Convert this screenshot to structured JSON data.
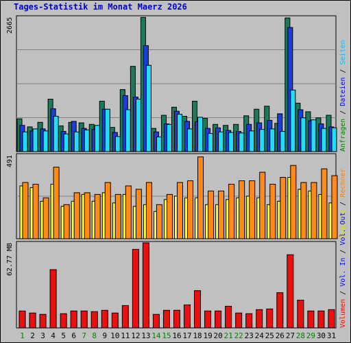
{
  "title": "Tages-Statistik im Monat Maerz 2026",
  "chart_data": [
    {
      "type": "bar",
      "panel": "requests",
      "max_label": "2665",
      "ylim": [
        0,
        2665
      ],
      "x": [
        1,
        2,
        3,
        4,
        5,
        6,
        7,
        8,
        9,
        10,
        11,
        12,
        13,
        14,
        15,
        16,
        17,
        18,
        19,
        20,
        21,
        22,
        23,
        24,
        25,
        26,
        27,
        28,
        29,
        30,
        31
      ],
      "legend": [
        {
          "name": "Anfragen",
          "color": "#008000"
        },
        {
          "name": "Dateien",
          "color": "#0000ff"
        },
        {
          "name": "Seiten",
          "color": "#00c0ff"
        }
      ],
      "series": [
        {
          "name": "Anfragen",
          "color": "#1a7a5a",
          "values": [
            650,
            490,
            580,
            1040,
            510,
            580,
            570,
            540,
            1000,
            480,
            1230,
            1690,
            2660,
            460,
            720,
            880,
            700,
            1000,
            660,
            540,
            520,
            540,
            710,
            840,
            900,
            560,
            2650,
            960,
            790,
            670,
            720
          ]
        },
        {
          "name": "Dateien",
          "color": "#1c3ed8",
          "values": [
            520,
            410,
            450,
            850,
            400,
            600,
            460,
            440,
            840,
            380,
            1110,
            1080,
            2100,
            390,
            550,
            800,
            600,
            590,
            460,
            470,
            420,
            400,
            540,
            570,
            620,
            750,
            2460,
            830,
            610,
            550,
            490
          ]
        },
        {
          "name": "Seiten",
          "color": "#22dcf8",
          "values": [
            390,
            450,
            410,
            700,
            350,
            390,
            430,
            520,
            840,
            300,
            830,
            1040,
            1710,
            290,
            540,
            740,
            450,
            680,
            360,
            390,
            380,
            370,
            410,
            440,
            450,
            400,
            1220,
            670,
            630,
            460,
            470
          ]
        }
      ]
    },
    {
      "type": "bar",
      "panel": "visits",
      "max_label": "491",
      "ylim": [
        0,
        491
      ],
      "x": [
        1,
        2,
        3,
        4,
        5,
        6,
        7,
        8,
        9,
        10,
        11,
        12,
        13,
        14,
        15,
        16,
        17,
        18,
        19,
        20,
        21,
        22,
        23,
        24,
        25,
        26,
        27,
        28,
        29,
        30,
        31
      ],
      "legend": [
        {
          "name": "Besuche",
          "color": "#e0e000"
        },
        {
          "name": "Rechner",
          "color": "#ff8000"
        }
      ],
      "series": [
        {
          "name": "Besuche",
          "color": "#ffff33",
          "values": [
            310,
            300,
            220,
            320,
            190,
            220,
            260,
            220,
            270,
            210,
            260,
            190,
            200,
            160,
            230,
            250,
            240,
            240,
            200,
            200,
            230,
            240,
            250,
            240,
            200,
            220,
            360,
            290,
            280,
            260,
            210
          ]
        },
        {
          "name": "Rechner",
          "color": "#ff8a1a",
          "values": [
            330,
            320,
            240,
            420,
            200,
            270,
            270,
            260,
            330,
            260,
            310,
            290,
            330,
            200,
            260,
            330,
            340,
            480,
            280,
            280,
            320,
            340,
            340,
            390,
            320,
            360,
            430,
            330,
            330,
            410,
            370
          ]
        }
      ]
    },
    {
      "type": "bar",
      "panel": "volume",
      "max_label": "62.77 MB",
      "ylim": [
        0,
        62.77
      ],
      "x": [
        1,
        2,
        3,
        4,
        5,
        6,
        7,
        8,
        9,
        10,
        11,
        12,
        13,
        14,
        15,
        16,
        17,
        18,
        19,
        20,
        21,
        22,
        23,
        24,
        25,
        26,
        27,
        28,
        29,
        30,
        31
      ],
      "legend": [
        {
          "name": "Volumen",
          "color": "#ff0000"
        },
        {
          "name": "Vol. In",
          "color": "#0000ff"
        },
        {
          "name": "Vol. Out",
          "color": "#0000ff"
        }
      ],
      "series": [
        {
          "name": "Volumen",
          "color": "#e81010",
          "values": [
            12.5,
            11,
            10,
            43,
            10.5,
            12.5,
            12.5,
            12,
            13,
            11,
            16.5,
            58,
            63,
            10,
            13,
            13,
            17,
            27.5,
            12.5,
            12.5,
            16,
            11,
            10.5,
            13.5,
            14,
            26,
            54,
            20.5,
            12.5,
            12.5,
            13.5
          ]
        }
      ]
    }
  ],
  "weekend_days": [
    1,
    7,
    8,
    14,
    15,
    21,
    22,
    28,
    29
  ]
}
